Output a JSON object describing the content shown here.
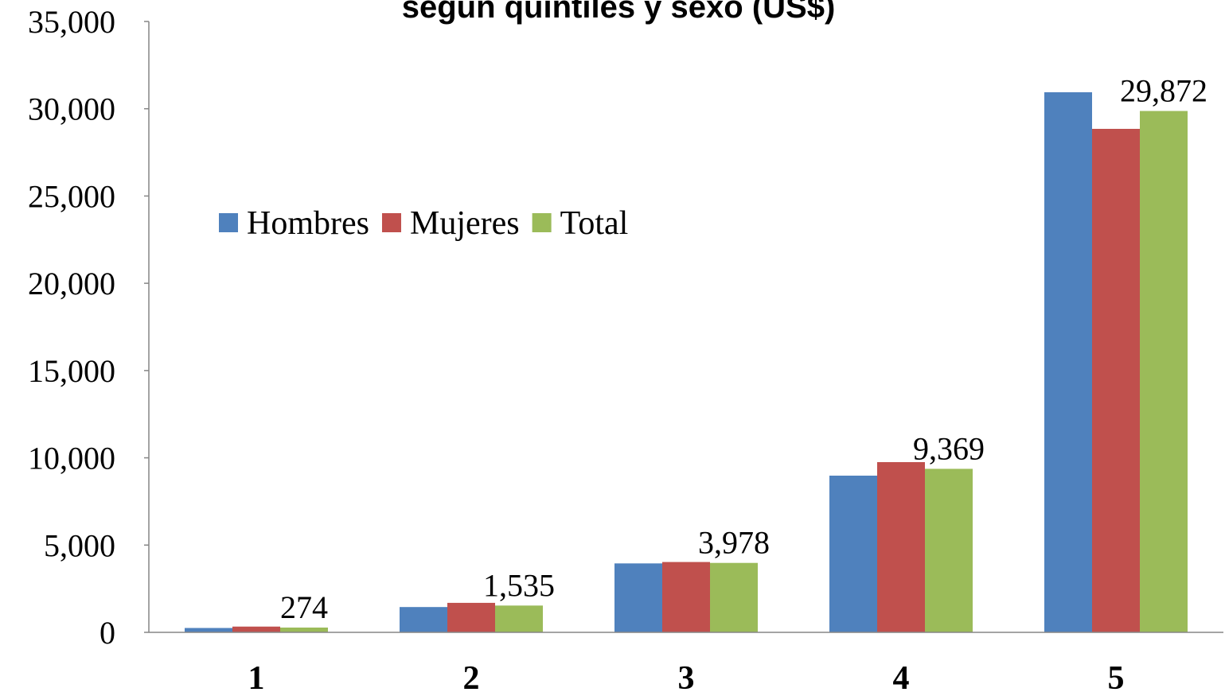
{
  "chart_data": {
    "type": "bar",
    "title": "según quintiles y sexo (US$)",
    "categories": [
      "1",
      "2",
      "3",
      "4",
      "5"
    ],
    "series": [
      {
        "name": "Hombres",
        "color": "#4f81bd",
        "values": [
          250,
          1450,
          3950,
          8978,
          30945
        ]
      },
      {
        "name": "Mujeres",
        "color": "#c0504d",
        "values": [
          330,
          1690,
          4030,
          9753,
          28848
        ]
      },
      {
        "name": "Total",
        "color": "#9bbb59",
        "values": [
          274,
          1535,
          3978,
          9369,
          29872
        ],
        "value_labels": [
          "274",
          "1,535",
          "3,978",
          "9,369",
          "29,872"
        ]
      }
    ],
    "ylim": [
      0,
      35000
    ],
    "yticks": [
      0,
      {
        "value": 5000,
        "label": "5,000"
      },
      {
        "value": 10000,
        "label": "10,000"
      },
      {
        "value": 15000,
        "label": "15,000"
      },
      {
        "value": 20000,
        "label": "20,000"
      },
      {
        "value": 25000,
        "label": "25,000"
      },
      {
        "value": 30000,
        "label": "30,000"
      },
      {
        "value": 35000,
        "label": "35,000"
      }
    ],
    "legend": "upper left",
    "grid": false
  }
}
